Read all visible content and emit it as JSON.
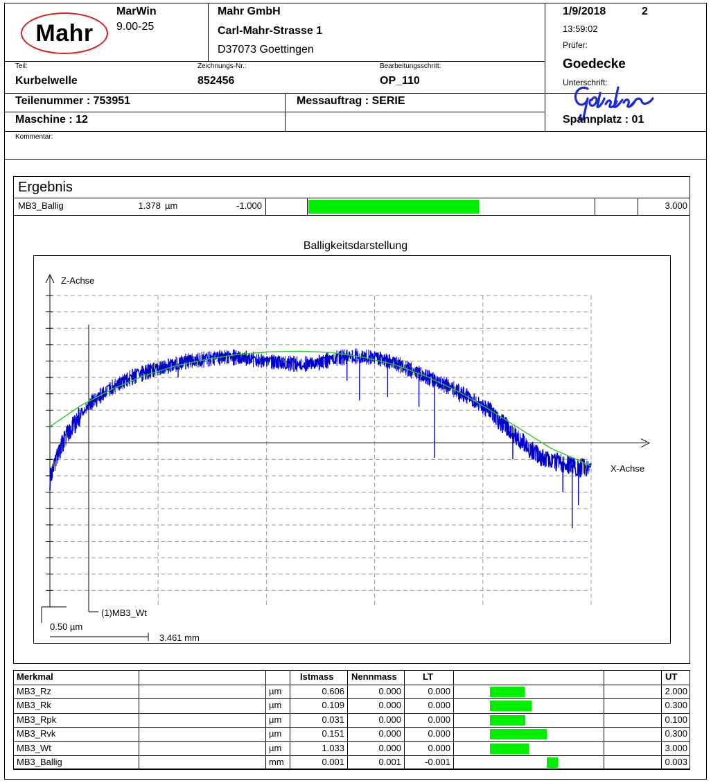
{
  "header": {
    "logo_text": "Mahr",
    "software": "MarWin",
    "version": "9.00-25",
    "company": "Mahr GmbH",
    "street": "Carl-Mahr-Strasse 1",
    "city": "D37073 Goettingen",
    "date": "1/9/2018",
    "page": "2",
    "time": "13:59:02",
    "pruefer_label": "Prüfer:",
    "pruefer": "Goedecke",
    "teil_label": "Teil:",
    "teil": "Kurbelwelle",
    "zeichnung_label": "Zeichnungs-Nr.:",
    "zeichnung": "852456",
    "bearbeitung_label": "Bearbeitungsschritt:",
    "bearbeitung": "OP_110",
    "unterschrift_label": "Unterschrift:",
    "signature": "Goedecke",
    "teilenummer": "Teilenummer : 753951",
    "messauftrag": "Messauftrag : SERIE",
    "maschine": "Maschine : 12",
    "spannplatz": "Spannplatz : 01",
    "kommentar_label": "Kommentar:"
  },
  "ergebnis": {
    "title": "Ergebnis",
    "name": "MB3_Ballig",
    "value": "1.378",
    "unit": "µm",
    "lower": "-1.000",
    "upper": "3.000",
    "fraction": 0.5945
  },
  "chart_data": {
    "type": "line",
    "title": "Balligkeitsdarstellung",
    "xlabel": "X-Achse",
    "ylabel": "Z-Achse",
    "series_label": "(1)MB3_Wt",
    "y_scale_label": "0.50 µm",
    "x_scale_label": "3.461 mm",
    "x_units_per_div": 3.461,
    "y_units_per_div": 0.5,
    "grid": true,
    "xlim": [
      0,
      17.305
    ],
    "ylim": [
      -5,
      4.5
    ],
    "fit_curve": {
      "color": "#22cc22",
      "x": [
        0,
        1.0,
        2.0,
        3.0,
        4.0,
        5.0,
        6.0,
        7.0,
        8.0,
        9.0,
        10.0,
        11.0,
        12.0,
        13.0,
        14.0,
        15.0,
        16.0,
        17.3
      ],
      "y": [
        0.5,
        1.15,
        1.65,
        2.05,
        2.35,
        2.55,
        2.7,
        2.78,
        2.8,
        2.76,
        2.62,
        2.4,
        2.05,
        1.6,
        1.05,
        0.45,
        -0.15,
        -0.7
      ]
    },
    "profile": {
      "color": "#0000cc",
      "x": [
        0,
        0.3,
        0.6,
        1.0,
        1.4,
        2.0,
        2.6,
        3.2,
        3.8,
        4.4,
        5.0,
        5.6,
        6.2,
        6.8,
        7.4,
        8.0,
        8.6,
        9.2,
        9.8,
        10.4,
        11.0,
        11.6,
        12.2,
        12.8,
        13.4,
        14.0,
        14.6,
        15.2,
        15.8,
        16.4,
        17.0,
        17.3
      ],
      "y": [
        -1.1,
        -0.2,
        0.3,
        0.9,
        1.3,
        1.7,
        2.0,
        2.2,
        2.35,
        2.5,
        2.55,
        2.62,
        2.6,
        2.5,
        2.45,
        2.4,
        2.45,
        2.6,
        2.65,
        2.6,
        2.45,
        2.2,
        1.95,
        1.7,
        1.4,
        1.0,
        0.5,
        -0.05,
        -0.5,
        -0.6,
        -0.75,
        -0.75
      ]
    },
    "spikes": [
      {
        "x": 1.5,
        "y": 1.1
      },
      {
        "x": 4.1,
        "y": 2.0
      },
      {
        "x": 9.5,
        "y": 1.9
      },
      {
        "x": 9.9,
        "y": 1.3
      },
      {
        "x": 10.8,
        "y": 1.4
      },
      {
        "x": 11.8,
        "y": 1.1
      },
      {
        "x": 12.3,
        "y": -0.45
      },
      {
        "x": 13.1,
        "y": 1.25
      },
      {
        "x": 14.8,
        "y": -0.5
      },
      {
        "x": 15.4,
        "y": -0.2
      },
      {
        "x": 16.4,
        "y": -1.5
      },
      {
        "x": 16.7,
        "y": -2.6
      },
      {
        "x": 16.9,
        "y": -1.9
      }
    ]
  },
  "table": {
    "headers": {
      "merkmal": "Merkmal",
      "istmass": "Istmass",
      "nennmass": "Nennmass",
      "lt": "LT",
      "ut": "UT"
    },
    "rows": [
      {
        "name": "MB3_Rz",
        "unit": "µm",
        "ist": "0.606",
        "nenn": "0.000",
        "lt": "0.000",
        "ut": "2.000",
        "bar_start": 0,
        "bar_end": 0.303
      },
      {
        "name": "MB3_Rk",
        "unit": "µm",
        "ist": "0.109",
        "nenn": "0.000",
        "lt": "0.000",
        "ut": "0.300",
        "bar_start": 0,
        "bar_end": 0.363
      },
      {
        "name": "MB3_Rpk",
        "unit": "µm",
        "ist": "0.031",
        "nenn": "0.000",
        "lt": "0.000",
        "ut": "0.100",
        "bar_start": 0,
        "bar_end": 0.31
      },
      {
        "name": "MB3_Rvk",
        "unit": "µm",
        "ist": "0.151",
        "nenn": "0.000",
        "lt": "0.000",
        "ut": "0.300",
        "bar_start": 0,
        "bar_end": 0.503
      },
      {
        "name": "MB3_Wt",
        "unit": "µm",
        "ist": "1.033",
        "nenn": "0.000",
        "lt": "0.000",
        "ut": "3.000",
        "bar_start": 0,
        "bar_end": 0.344
      },
      {
        "name": "MB3_Ballig",
        "unit": "mm",
        "ist": "0.001",
        "nenn": "0.001",
        "lt": "-0.001",
        "ut": "0.003",
        "bar_start": 0.5,
        "bar_end": 0.6
      }
    ]
  }
}
